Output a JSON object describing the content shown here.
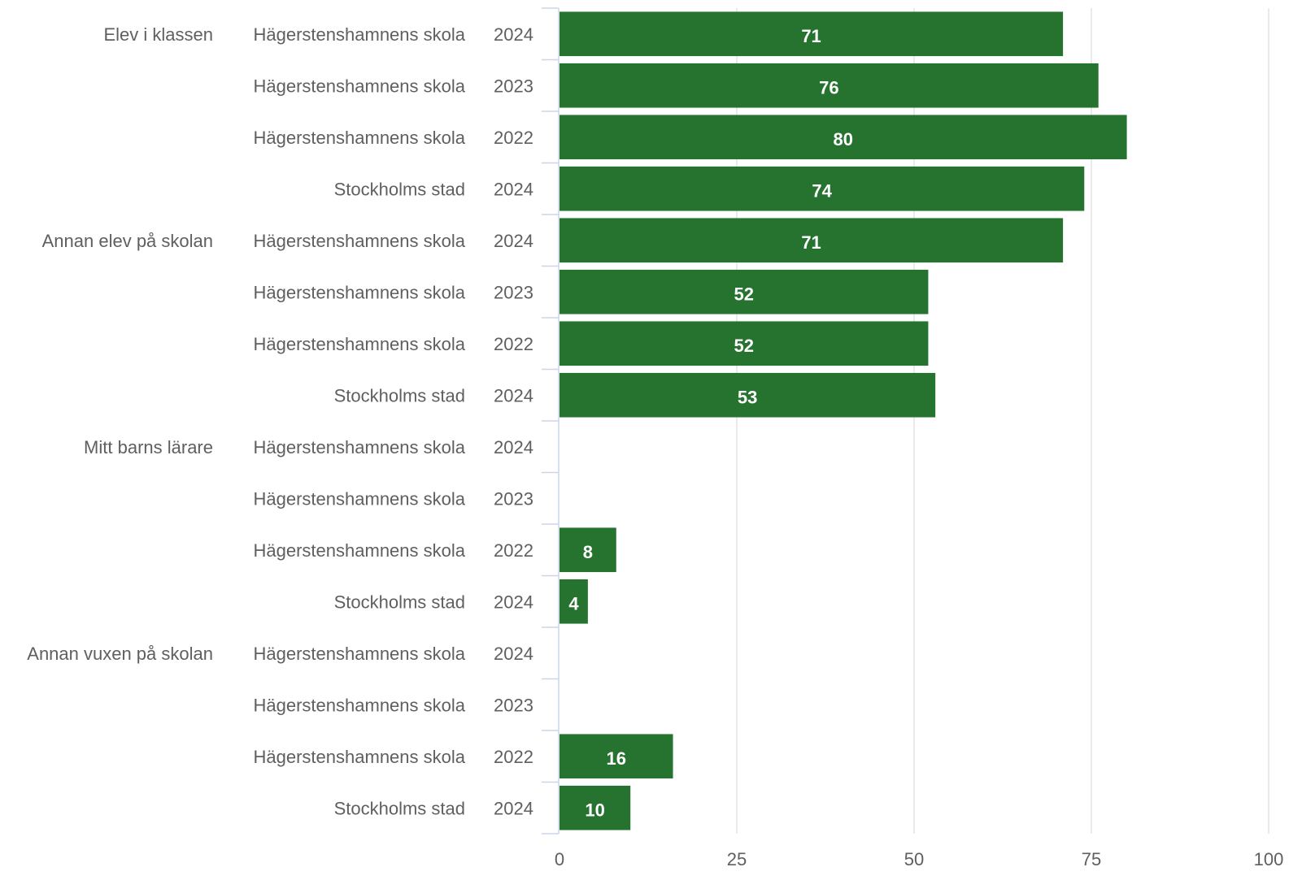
{
  "chart_data": {
    "type": "bar",
    "orientation": "horizontal",
    "colors": {
      "bar": "#267330",
      "label": "#5f5f5f",
      "data_label": "#ffffff",
      "grid": "#e3e3e3",
      "axis": "#ccd6eb"
    },
    "xlim": [
      0,
      100
    ],
    "x_ticks": [
      "0",
      "25",
      "50",
      "75",
      "100"
    ],
    "grid": true,
    "groups": [
      {
        "name": "Elev i klassen",
        "rows": [
          {
            "unit": "Hägerstenshamnens skola",
            "year": "2024",
            "value": 71
          },
          {
            "unit": "Hägerstenshamnens skola",
            "year": "2023",
            "value": 76
          },
          {
            "unit": "Hägerstenshamnens skola",
            "year": "2022",
            "value": 80
          },
          {
            "unit": "Stockholms stad",
            "year": "2024",
            "value": 74
          }
        ]
      },
      {
        "name": "Annan elev på skolan",
        "rows": [
          {
            "unit": "Hägerstenshamnens skola",
            "year": "2024",
            "value": 71
          },
          {
            "unit": "Hägerstenshamnens skola",
            "year": "2023",
            "value": 52
          },
          {
            "unit": "Hägerstenshamnens skola",
            "year": "2022",
            "value": 52
          },
          {
            "unit": "Stockholms stad",
            "year": "2024",
            "value": 53
          }
        ]
      },
      {
        "name": "Mitt barns lärare",
        "rows": [
          {
            "unit": "Hägerstenshamnens skola",
            "year": "2024",
            "value": null
          },
          {
            "unit": "Hägerstenshamnens skola",
            "year": "2023",
            "value": null
          },
          {
            "unit": "Hägerstenshamnens skola",
            "year": "2022",
            "value": 8
          },
          {
            "unit": "Stockholms stad",
            "year": "2024",
            "value": 4
          }
        ]
      },
      {
        "name": "Annan vuxen på skolan",
        "rows": [
          {
            "unit": "Hägerstenshamnens skola",
            "year": "2024",
            "value": null
          },
          {
            "unit": "Hägerstenshamnens skola",
            "year": "2023",
            "value": null
          },
          {
            "unit": "Hägerstenshamnens skola",
            "year": "2022",
            "value": 16
          },
          {
            "unit": "Stockholms stad",
            "year": "2024",
            "value": 10
          }
        ]
      }
    ]
  }
}
